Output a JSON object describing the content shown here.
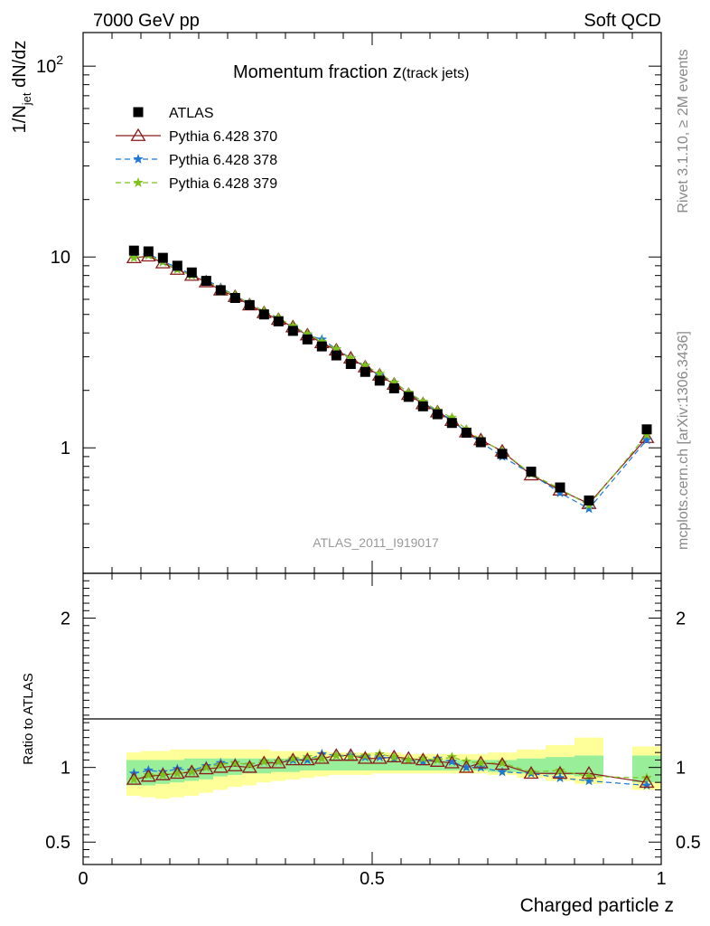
{
  "header": {
    "left": "7000 GeV pp",
    "right": "Soft QCD"
  },
  "side": {
    "rivet": "Rivet 3.1.10, ≥ 2M events",
    "mcplots": "mcplots.cern.ch [arXiv:1306.3436]"
  },
  "chart_data": {
    "type": "scatter",
    "title_main": "Momentum fraction z",
    "title_sub": "(track jets)",
    "analysis_id": "ATLAS_2011_I919017",
    "xlabel": "Charged particle z",
    "ylabel": {
      "base": "1/N",
      "sub": "jet",
      "rest": " dN/dz"
    },
    "ratio_ylabel": "Ratio to ATLAS",
    "xlim": [
      0,
      1.0
    ],
    "ylim": [
      0.22,
      150
    ],
    "yscale": "log",
    "ratio_ylim": [
      0.35,
      2.3
    ],
    "x_ticks": [
      {
        "v": 0,
        "label": "0"
      },
      {
        "v": 0.5,
        "label": "0.5"
      },
      {
        "v": 1.0,
        "label": "1"
      }
    ],
    "y_ticks_main": [
      {
        "v": 1,
        "label": "1"
      },
      {
        "v": 10,
        "label": "10"
      },
      {
        "v": 100,
        "label": "10",
        "sup": "2"
      }
    ],
    "y_ticks_ratio": [
      {
        "v": 0.5,
        "label": "0.5"
      },
      {
        "v": 1,
        "label": "1"
      },
      {
        "v": 2,
        "label": "2"
      }
    ],
    "legend_placement": "top-left",
    "x": [
      0.088,
      0.113,
      0.138,
      0.163,
      0.188,
      0.213,
      0.238,
      0.263,
      0.288,
      0.313,
      0.338,
      0.363,
      0.388,
      0.413,
      0.438,
      0.463,
      0.488,
      0.513,
      0.538,
      0.563,
      0.588,
      0.613,
      0.638,
      0.663,
      0.688,
      0.725,
      0.775,
      0.825,
      0.875,
      0.975
    ],
    "series": [
      {
        "name": "ATLAS",
        "marker": "square",
        "color": "#000000",
        "values": [
          10.8,
          10.7,
          9.9,
          9.0,
          8.3,
          7.5,
          6.7,
          6.1,
          5.6,
          5.0,
          4.6,
          4.1,
          3.7,
          3.4,
          3.05,
          2.75,
          2.5,
          2.25,
          2.05,
          1.85,
          1.65,
          1.5,
          1.35,
          1.2,
          1.07,
          0.93,
          0.75,
          0.62,
          0.53,
          1.25
        ]
      },
      {
        "name": "Pythia 6.428 370",
        "marker": "triangle",
        "color": "#8b1a1a",
        "dash": "",
        "values": [
          9.9,
          10.1,
          9.3,
          8.6,
          8.0,
          7.4,
          6.7,
          6.2,
          5.6,
          5.1,
          4.7,
          4.3,
          3.9,
          3.55,
          3.25,
          2.95,
          2.65,
          2.4,
          2.15,
          1.9,
          1.7,
          1.54,
          1.39,
          1.21,
          1.1,
          0.96,
          0.72,
          0.6,
          0.51,
          1.13
        ]
      },
      {
        "name": "Pythia 6.428 378",
        "marker": "star",
        "color": "#1f77d4",
        "dash": "6,4",
        "values": [
          10.3,
          10.4,
          9.5,
          8.8,
          8.1,
          7.6,
          6.9,
          6.3,
          5.7,
          5.2,
          4.8,
          4.3,
          3.9,
          3.7,
          3.3,
          2.95,
          2.7,
          2.4,
          2.2,
          1.95,
          1.72,
          1.55,
          1.4,
          1.2,
          1.07,
          0.9,
          0.73,
          0.58,
          0.48,
          1.1
        ]
      },
      {
        "name": "Pythia 6.428 379",
        "marker": "star",
        "color": "#7ec21e",
        "dash": "6,4",
        "values": [
          9.9,
          10.2,
          9.4,
          8.6,
          8.0,
          7.5,
          6.8,
          6.3,
          5.7,
          5.2,
          4.8,
          4.35,
          3.95,
          3.6,
          3.3,
          2.95,
          2.7,
          2.45,
          2.2,
          1.95,
          1.75,
          1.57,
          1.44,
          1.25,
          1.1,
          0.96,
          0.73,
          0.61,
          0.5,
          1.17
        ]
      }
    ],
    "ratio_series": [
      {
        "name": "Pythia 6.428 370",
        "values": [
          0.92,
          0.94,
          0.95,
          0.96,
          0.97,
          0.99,
          1.0,
          1.01,
          1.0,
          1.03,
          1.03,
          1.05,
          1.05,
          1.06,
          1.08,
          1.08,
          1.06,
          1.06,
          1.07,
          1.06,
          1.05,
          1.04,
          1.03,
          1.0,
          1.03,
          1.02,
          0.96,
          0.96,
          0.96,
          0.9
        ]
      },
      {
        "name": "Pythia 6.428 378",
        "values": [
          0.96,
          0.98,
          0.97,
          0.99,
          0.98,
          1.01,
          1.03,
          1.03,
          1.02,
          1.04,
          1.04,
          1.05,
          1.05,
          1.09,
          1.08,
          1.08,
          1.07,
          1.07,
          1.06,
          1.05,
          1.04,
          1.06,
          1.04,
          1.0,
          1.0,
          0.97,
          0.96,
          0.93,
          0.91,
          0.88
        ]
      },
      {
        "name": "Pythia 6.428 379",
        "values": [
          0.92,
          0.95,
          0.95,
          0.96,
          0.97,
          1.0,
          1.02,
          1.03,
          1.02,
          1.04,
          1.04,
          1.06,
          1.07,
          1.06,
          1.08,
          1.07,
          1.08,
          1.09,
          1.07,
          1.05,
          1.06,
          1.05,
          1.07,
          1.04,
          1.03,
          1.03,
          0.97,
          0.98,
          0.94,
          0.93
        ]
      }
    ],
    "ratio_bands": {
      "edges": [
        0.075,
        0.1,
        0.125,
        0.15,
        0.175,
        0.2,
        0.225,
        0.25,
        0.275,
        0.3,
        0.325,
        0.35,
        0.375,
        0.4,
        0.425,
        0.45,
        0.475,
        0.5,
        0.525,
        0.55,
        0.575,
        0.6,
        0.625,
        0.65,
        0.675,
        0.7,
        0.75,
        0.8,
        0.85,
        0.9,
        0.95,
        1.0
      ],
      "inner_low": [
        0.88,
        0.88,
        0.89,
        0.9,
        0.91,
        0.92,
        0.94,
        0.95,
        0.96,
        0.96,
        0.97,
        0.97,
        0.98,
        0.98,
        0.98,
        0.98,
        0.98,
        0.98,
        0.98,
        0.98,
        0.98,
        0.98,
        0.98,
        0.98,
        0.98,
        0.97,
        0.96,
        0.95,
        0.94,
        null,
        0.9
      ],
      "inner_high": [
        1.05,
        1.05,
        1.05,
        1.05,
        1.06,
        1.06,
        1.06,
        1.06,
        1.06,
        1.06,
        1.06,
        1.06,
        1.06,
        1.06,
        1.06,
        1.06,
        1.06,
        1.05,
        1.05,
        1.05,
        1.05,
        1.05,
        1.05,
        1.05,
        1.05,
        1.05,
        1.06,
        1.07,
        1.08,
        null,
        1.08
      ],
      "outer_low": [
        0.81,
        0.8,
        0.79,
        0.8,
        0.81,
        0.83,
        0.85,
        0.87,
        0.88,
        0.9,
        0.91,
        0.92,
        0.93,
        0.94,
        0.95,
        0.95,
        0.95,
        0.96,
        0.96,
        0.96,
        0.96,
        0.96,
        0.96,
        0.96,
        0.96,
        0.95,
        0.93,
        0.91,
        0.89,
        null,
        0.85
      ],
      "outer_high": [
        1.1,
        1.11,
        1.11,
        1.12,
        1.12,
        1.12,
        1.12,
        1.12,
        1.12,
        1.12,
        1.11,
        1.11,
        1.11,
        1.11,
        1.1,
        1.1,
        1.1,
        1.1,
        1.1,
        1.09,
        1.09,
        1.09,
        1.09,
        1.09,
        1.09,
        1.1,
        1.12,
        1.15,
        1.2,
        null,
        1.14
      ],
      "inner_color": "#99ef99",
      "outer_color": "#ffff99"
    }
  }
}
